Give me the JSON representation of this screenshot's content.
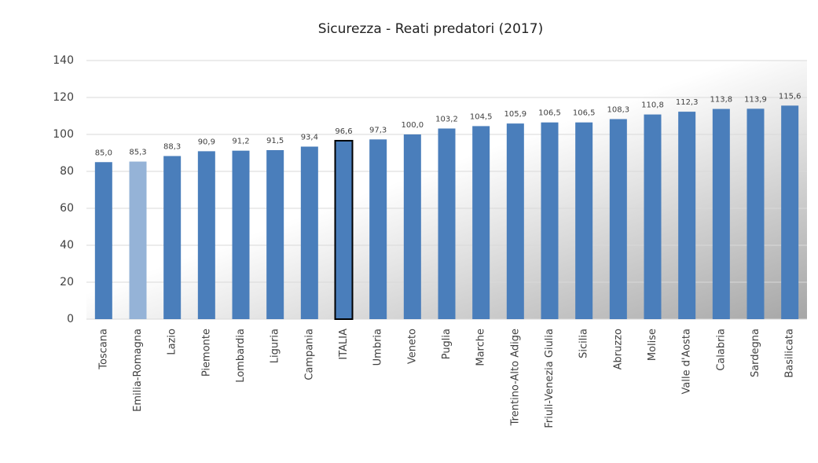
{
  "chart_data": {
    "type": "bar",
    "title": "Sicurezza - Reati predatori  (2017)",
    "categories": [
      "Toscana",
      "Emilia-Romagna",
      "Lazio",
      "Piemonte",
      "Lombardia",
      "Liguria",
      "Campania",
      "ITALIA",
      "Umbria",
      "Veneto",
      "Puglia",
      "Marche",
      "Trentino-Alto Adige",
      "Friuli-Venezia Giulia",
      "Sicilia",
      "Abruzzo",
      "Molise",
      "Valle d'Aosta",
      "Calabria",
      "Sardegna",
      "Basilicata"
    ],
    "values": [
      85.0,
      85.3,
      88.3,
      90.9,
      91.2,
      91.5,
      93.4,
      96.6,
      97.3,
      100.0,
      103.2,
      104.5,
      105.9,
      106.5,
      106.5,
      108.3,
      110.8,
      112.3,
      113.8,
      113.9,
      115.6
    ],
    "value_labels": [
      "85,0",
      "85,3",
      "88,3",
      "90,9",
      "91,2",
      "91,5",
      "93,4",
      "96,6",
      "97,3",
      "100,0",
      "103,2",
      "104,5",
      "105,9",
      "106,5",
      "106,5",
      "108,3",
      "110,8",
      "112,3",
      "113,8",
      "113,9",
      "115,6"
    ],
    "colors": [
      "#4a7ebb",
      "#95b3d7",
      "#4a7ebb",
      "#4a7ebb",
      "#4a7ebb",
      "#4a7ebb",
      "#4a7ebb",
      "#4a7ebb",
      "#4a7ebb",
      "#4a7ebb",
      "#4a7ebb",
      "#4a7ebb",
      "#4a7ebb",
      "#4a7ebb",
      "#4a7ebb",
      "#4a7ebb",
      "#4a7ebb",
      "#4a7ebb",
      "#4a7ebb",
      "#4a7ebb",
      "#4a7ebb"
    ],
    "edge_colors": [
      null,
      null,
      null,
      null,
      null,
      null,
      null,
      "#000000",
      null,
      null,
      null,
      null,
      null,
      null,
      null,
      null,
      null,
      null,
      null,
      null,
      null
    ],
    "ylim": [
      0,
      140
    ],
    "yticks": [
      0,
      20,
      40,
      60,
      80,
      100,
      120,
      140
    ],
    "grid": true
  }
}
